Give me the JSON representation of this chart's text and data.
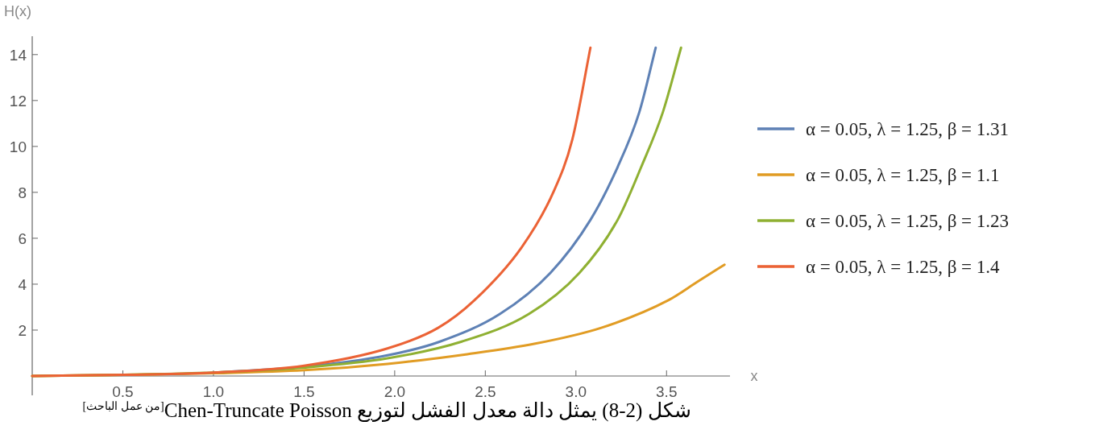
{
  "chart_data": {
    "type": "line",
    "xlabel": "x",
    "ylabel": "H(x)",
    "xlim": [
      0,
      3.85
    ],
    "ylim": [
      0,
      14.8
    ],
    "xticks": [
      0.5,
      {
        "value": 1,
        "label": "1.0"
      },
      1.5,
      {
        "value": 2,
        "label": "2.0"
      },
      2.5,
      {
        "value": 3,
        "label": "3.0"
      },
      3.5
    ],
    "yticks": [
      2,
      4,
      6,
      8,
      10,
      12,
      14
    ],
    "legend": "right",
    "series": [
      {
        "name": "α = 0.05, λ = 1.25, β = 1.31",
        "color": "#5e81b5",
        "x": [
          1.0,
          1.5,
          1.96,
          2.25,
          2.58,
          2.86,
          3.08,
          3.23,
          3.35,
          3.44
        ],
        "values": [
          0.15,
          0.4,
          0.9,
          1.5,
          2.7,
          4.5,
          6.8,
          9.1,
          11.5,
          14.3
        ]
      },
      {
        "name": "α = 0.05, λ = 1.25, β = 1.1",
        "color": "#e19c24",
        "x": [
          0,
          0.5,
          1.0,
          1.5,
          1.96,
          2.4,
          2.77,
          3.14,
          3.51,
          3.67,
          3.82
        ],
        "values": [
          0,
          0.05,
          0.12,
          0.25,
          0.53,
          0.95,
          1.4,
          2.1,
          3.3,
          4.1,
          4.85
        ]
      },
      {
        "name": "α = 0.05, λ = 1.25, β = 1.23",
        "color": "#8fb032",
        "x": [
          0,
          0.5,
          1.0,
          1.5,
          1.96,
          2.37,
          2.74,
          3.02,
          3.23,
          3.36,
          3.48,
          3.58
        ],
        "values": [
          0,
          0.05,
          0.15,
          0.37,
          0.77,
          1.5,
          2.7,
          4.5,
          6.8,
          9.1,
          11.5,
          14.3
        ]
      },
      {
        "name": "α = 0.05, λ = 1.25, β = 1.4",
        "color": "#eb6235",
        "x": [
          0,
          0.5,
          1.0,
          1.5,
          1.96,
          2.24,
          2.44,
          2.7,
          2.875,
          2.98,
          3.08
        ],
        "values": [
          0,
          0.05,
          0.15,
          0.45,
          1.2,
          2.1,
          3.3,
          5.6,
          8.0,
          10.3,
          14.3
        ]
      }
    ],
    "annotations": [
      "شكل (2-8) يمثل دالة معدل الفشل لتوزيع Chen-Truncate Poisson$^{[من عمل الباحث]}$"
    ]
  }
}
